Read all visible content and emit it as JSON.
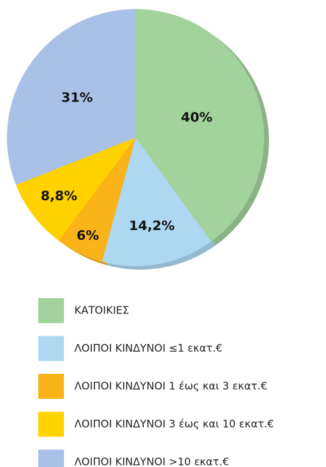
{
  "chart_data": {
    "type": "pie",
    "categories": [
      "ΚΑΤΟΙΚΙΕΣ",
      "ΛΟΙΠΟΙ ΚΙΝΔΥΝΟΙ ≤1 εκατ.€",
      "ΛΟΙΠΟΙ ΚΙΝΔΥΝΟΙ 1 έως και 3 εκατ.€",
      "ΛΟΙΠΟΙ ΚΙΝΔΥΝΟΙ 3 έως και 10 εκατ.€",
      "ΛΟΙΠΟΙ ΚΙΝΔΥΝΟΙ >10 εκατ.€"
    ],
    "values": [
      40,
      14.2,
      6,
      8.8,
      31
    ],
    "value_labels": [
      "40%",
      "14,2%",
      "6%",
      "8,8%",
      "31%"
    ],
    "colors": [
      "#a3d39c",
      "#aed8f2",
      "#fbb31a",
      "#ffd200",
      "#a9c1e6"
    ]
  }
}
